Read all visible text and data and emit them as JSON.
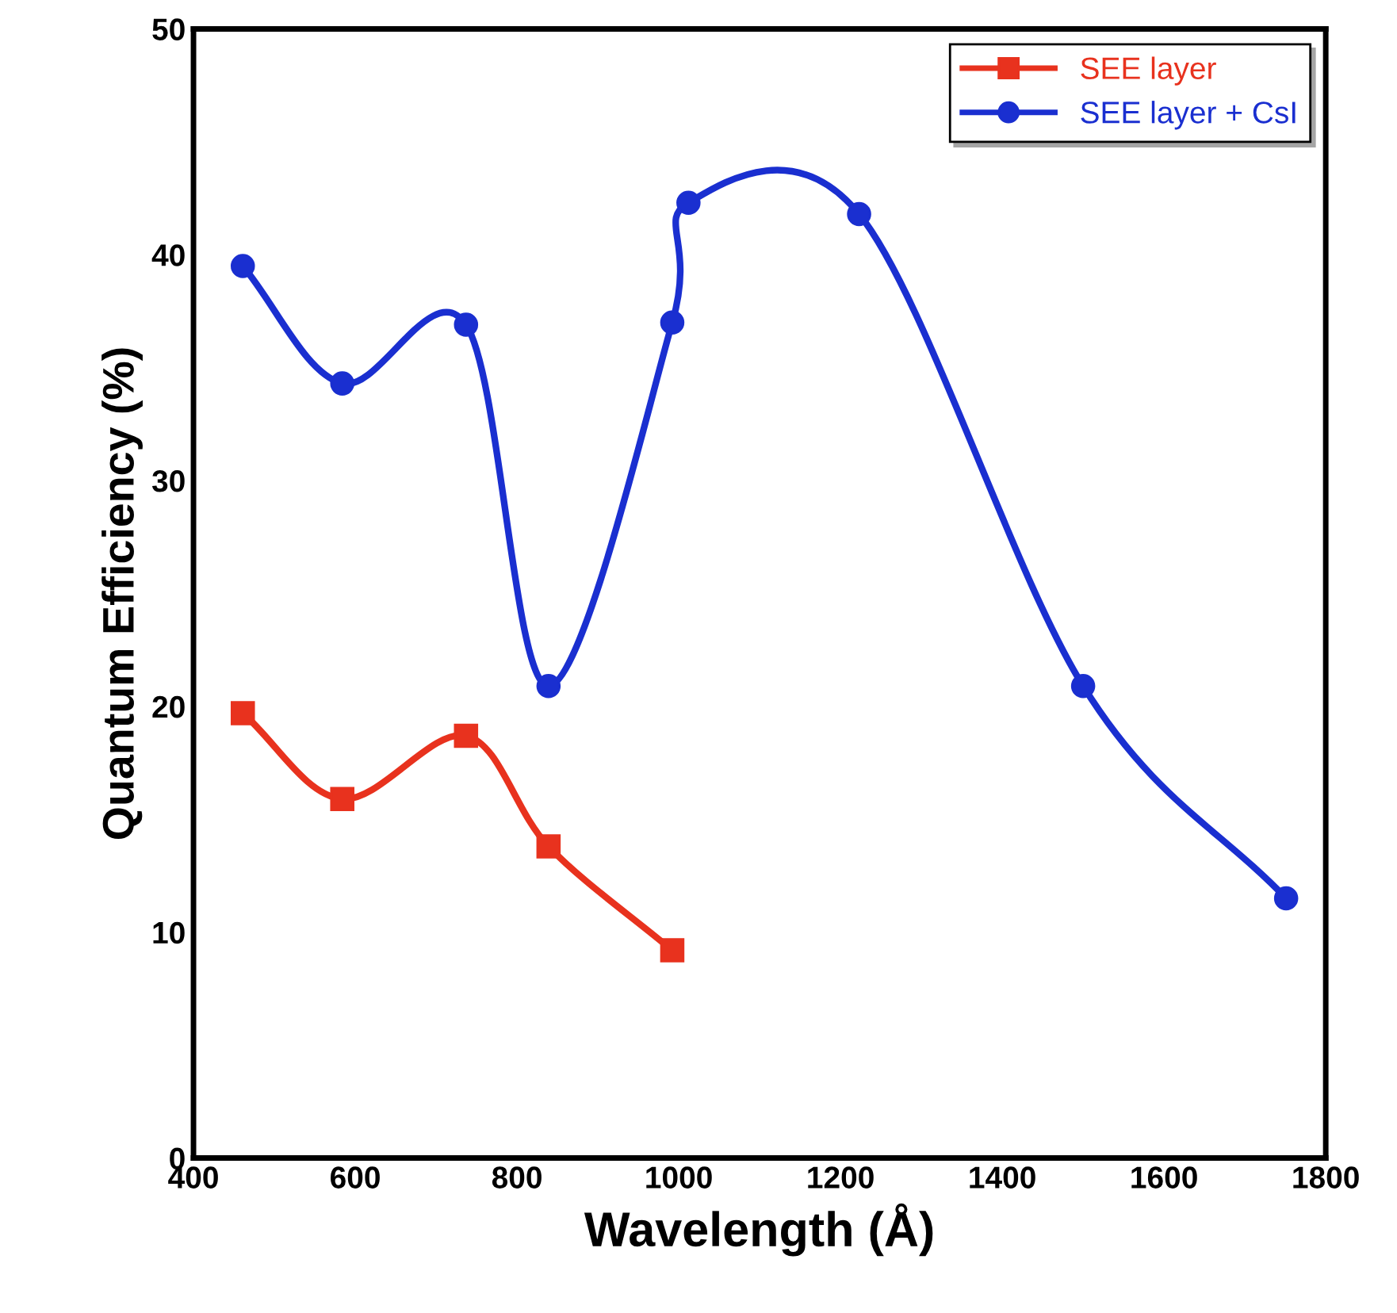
{
  "chart_data": {
    "type": "line",
    "xlabel": "Wavelength (Å)",
    "ylabel": "Quantum Efficiency (%)",
    "xlim": [
      400,
      1800
    ],
    "xticks": [
      400,
      600,
      800,
      1000,
      1200,
      1400,
      1600,
      1800
    ],
    "ylim": [
      0,
      50
    ],
    "yticks": [
      0,
      10,
      20,
      30,
      40,
      50
    ],
    "grid": false,
    "legend": "top right",
    "line_style": "solid",
    "series": [
      {
        "name": "SEE layer",
        "color": "#e8321e",
        "marker": "square",
        "x": [
          461,
          584,
          737,
          839,
          992
        ],
        "values": [
          19.7,
          15.9,
          18.7,
          13.8,
          9.2
        ]
      },
      {
        "name": "SEE layer + CsI",
        "color": "#1a2fd0",
        "marker": "circle",
        "x": [
          461,
          584,
          737,
          839,
          992,
          1012,
          1223,
          1500,
          1751
        ],
        "values": [
          39.5,
          34.3,
          36.9,
          20.9,
          37.0,
          42.3,
          41.8,
          20.9,
          11.5
        ]
      }
    ]
  }
}
